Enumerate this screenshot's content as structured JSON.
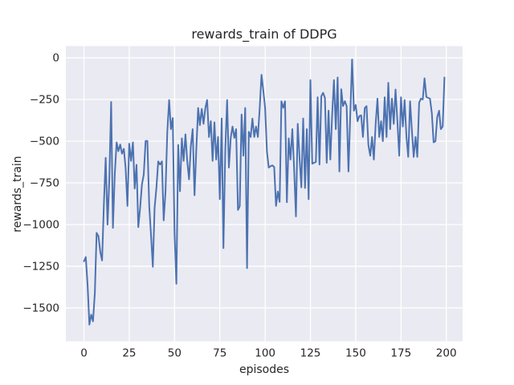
{
  "figure": {
    "background_color": "#ffffff",
    "plot_background_color": "#eaeaf2",
    "grid_color": "#ffffff",
    "text_color": "#262626"
  },
  "chart_data": {
    "type": "line",
    "title": "rewards_train of DDPG",
    "xlabel": "episodes",
    "ylabel": "rewards_train",
    "x_tick_labels": [
      "0",
      "25",
      "50",
      "75",
      "100",
      "125",
      "150",
      "175",
      "200"
    ],
    "x_ticks": [
      0,
      25,
      50,
      75,
      100,
      125,
      150,
      175,
      200
    ],
    "y_tick_labels": [
      "0",
      "−250",
      "−500",
      "−750",
      "−1000",
      "−1250",
      "−1500"
    ],
    "y_ticks": [
      0,
      -250,
      -500,
      -750,
      -1000,
      -1250,
      -1500
    ],
    "xlim": [
      -10,
      209
    ],
    "ylim": [
      -1700,
      70
    ],
    "grid": true,
    "legend": null,
    "series": [
      {
        "name": "rewards_train",
        "color": "#4c72b0",
        "x_is_index": true,
        "values": [
          -1220,
          -1195,
          -1365,
          -1600,
          -1540,
          -1580,
          -1410,
          -1050,
          -1070,
          -1165,
          -1215,
          -870,
          -600,
          -1000,
          -730,
          -265,
          -1020,
          -700,
          -507,
          -560,
          -520,
          -575,
          -546,
          -660,
          -888,
          -515,
          -618,
          -507,
          -784,
          -642,
          -1015,
          -900,
          -761,
          -700,
          -499,
          -499,
          -888,
          -1060,
          -1253,
          -900,
          -777,
          -621,
          -640,
          -621,
          -975,
          -800,
          -444,
          -253,
          -428,
          -361,
          -1046,
          -1355,
          -523,
          -800,
          -483,
          -618,
          -459,
          -618,
          -729,
          -530,
          -428,
          -824,
          -554,
          -301,
          -404,
          -306,
          -396,
          -301,
          -253,
          -475,
          -380,
          -618,
          -387,
          -610,
          -475,
          -848,
          -364,
          -1141,
          -554,
          -253,
          -658,
          -480,
          -412,
          -480,
          -428,
          -912,
          -890,
          -340,
          -587,
          -301,
          -1261,
          -444,
          -475,
          -365,
          -475,
          -412,
          -475,
          -300,
          -102,
          -198,
          -301,
          -563,
          -658,
          -650,
          -645,
          -655,
          -888,
          -802,
          -864,
          -261,
          -300,
          -261,
          -866,
          -483,
          -610,
          -428,
          -666,
          -951,
          -396,
          -600,
          -777,
          -364,
          -781,
          -428,
          -848,
          -134,
          -635,
          -630,
          -625,
          -237,
          -640,
          -230,
          -210,
          -240,
          -630,
          -317,
          -610,
          -340,
          -134,
          -428,
          -118,
          -682,
          -189,
          -290,
          -260,
          -290,
          -682,
          -345,
          -10,
          -317,
          -283,
          -380,
          -350,
          -345,
          -475,
          -301,
          -290,
          -523,
          -587,
          -475,
          -610,
          -400,
          -245,
          -475,
          -380,
          -500,
          -237,
          -475,
          -150,
          -428,
          -245,
          -396,
          -190,
          -380,
          -587,
          -237,
          -412,
          -253,
          -475,
          -594,
          -261,
          -430,
          -594,
          -475,
          -594,
          -269,
          -245,
          -250,
          -123,
          -235,
          -240,
          -245,
          -332,
          -507,
          -500,
          -356,
          -317,
          -428,
          -412,
          -118
        ]
      }
    ]
  }
}
